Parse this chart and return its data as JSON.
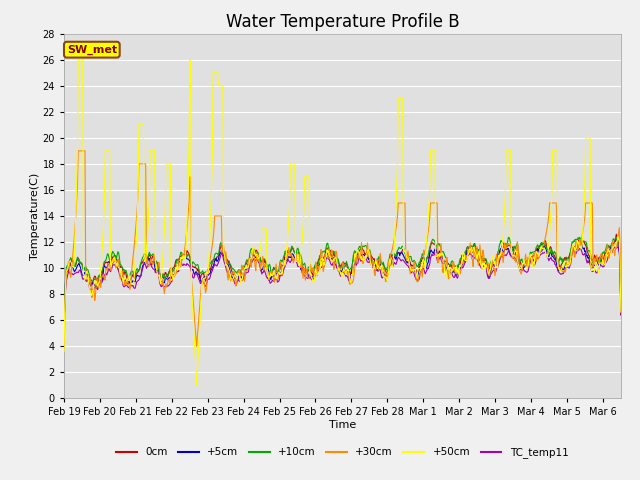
{
  "title": "Water Temperature Profile B",
  "xlabel": "Time",
  "ylabel": "Temperature(C)",
  "ylim": [
    0,
    28
  ],
  "annotation": "SW_met",
  "annotation_color": "#8B0000",
  "annotation_bg": "#FFFF00",
  "annotation_border": "#8B4513",
  "legend_labels": [
    "0cm",
    "+5cm",
    "+10cm",
    "+30cm",
    "+50cm",
    "TC_temp11"
  ],
  "legend_colors": [
    "#CC0000",
    "#0000CC",
    "#00AA00",
    "#FF8C00",
    "#FFFF00",
    "#AA00AA"
  ],
  "fig_bg": "#F0F0F0",
  "plot_bg": "#E0E0E0",
  "grid_color": "#FFFFFF",
  "xtick_labels": [
    "Feb 19",
    "Feb 20",
    "Feb 21",
    "Feb 22",
    "Feb 23",
    "Feb 24",
    "Feb 25",
    "Feb 26",
    "Feb 27",
    "Feb 28",
    "Mar 1",
    "Mar 2",
    "Mar 3",
    "Mar 4",
    "Mar 5",
    "Mar 6"
  ],
  "title_fontsize": 12,
  "axis_fontsize": 8,
  "tick_fontsize": 7,
  "n_days": 15.5,
  "pts_per_day": 48
}
